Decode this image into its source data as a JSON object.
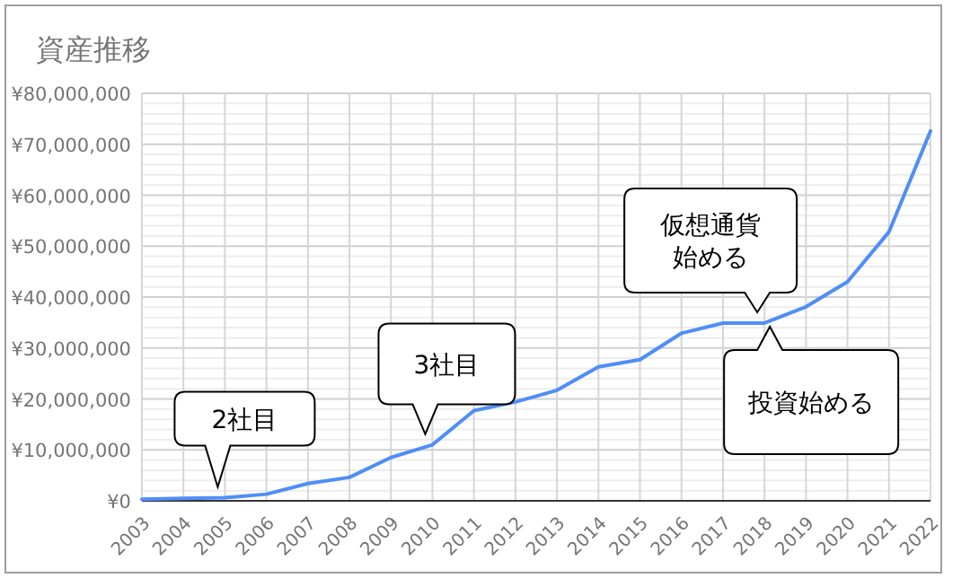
{
  "chart_data": {
    "type": "line",
    "title": "資産推移",
    "categories": [
      "2003",
      "2004",
      "2005",
      "2006",
      "2007",
      "2008",
      "2009",
      "2010",
      "2011",
      "2012",
      "2013",
      "2014",
      "2015",
      "2016",
      "2017",
      "2018",
      "2019",
      "2020",
      "2021",
      "2022"
    ],
    "series": [
      {
        "color": "#4f8ef7",
        "values": [
          300000,
          500000,
          600000,
          1300000,
          3400000,
          4600000,
          8500000,
          11000000,
          17700000,
          19400000,
          21700000,
          26300000,
          27700000,
          32900000,
          34900000,
          34900000,
          38100000,
          43000000,
          52800000,
          72600000
        ]
      }
    ],
    "ylim": [
      0,
      80000000
    ],
    "yticks": [
      {
        "value": 0,
        "label": "¥0"
      },
      {
        "value": 10000000,
        "label": "¥10,000,000"
      },
      {
        "value": 20000000,
        "label": "¥20,000,000"
      },
      {
        "value": 30000000,
        "label": "¥30,000,000"
      },
      {
        "value": 40000000,
        "label": "¥40,000,000"
      },
      {
        "value": 50000000,
        "label": "¥50,000,000"
      },
      {
        "value": 60000000,
        "label": "¥60,000,000"
      },
      {
        "value": 70000000,
        "label": "¥70,000,000"
      },
      {
        "value": 80000000,
        "label": "¥80,000,000"
      }
    ],
    "grid": true,
    "annotations": [
      {
        "text": "2社目",
        "x": "2005",
        "y": 600000
      },
      {
        "text": "3社目",
        "x": "2010",
        "y": 11000000
      },
      {
        "text": "仮想通貨始める",
        "x": "2018",
        "y": 34900000
      },
      {
        "text": "投資始める",
        "x": "2018",
        "y": 34900000
      }
    ]
  }
}
